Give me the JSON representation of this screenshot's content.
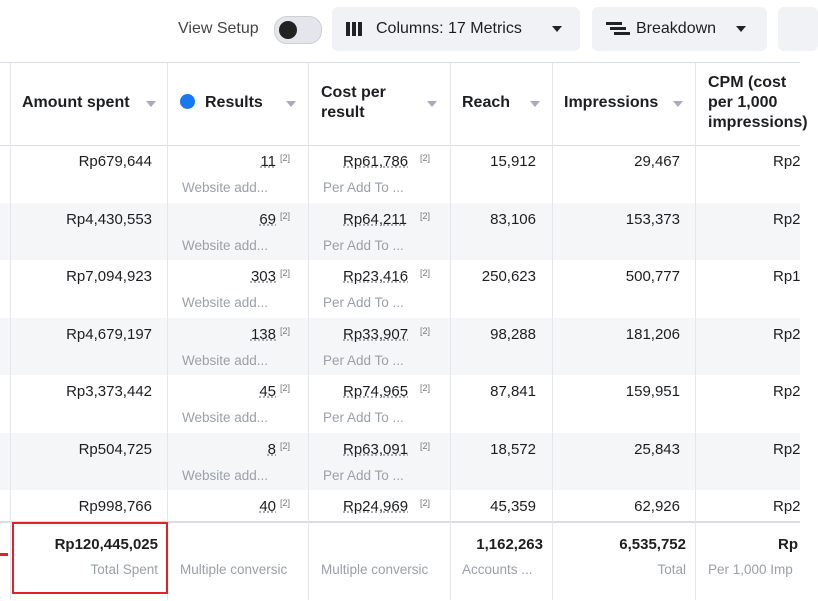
{
  "toolbar": {
    "view_setup": "View Setup",
    "columns": "Columns: 17 Metrics",
    "breakdown": "Breakdown"
  },
  "table": {
    "headers": {
      "amount": "Amount spent",
      "results": "Results",
      "cost": "Cost per result",
      "reach": "Reach",
      "impressions": "Impressions",
      "cpm": "CPM (cost per 1,000 impressions)"
    },
    "rows": [
      {
        "amount": "Rp679,644",
        "results": "11",
        "results_note": "[2]",
        "results_type": "Website add...",
        "cost": "Rp61,786",
        "cost_note": "[2]",
        "cost_type": "Per Add To ...",
        "reach": "15,912",
        "impressions": "29,467",
        "cpm": "Rp2"
      },
      {
        "amount": "Rp4,430,553",
        "results": "69",
        "results_note": "[2]",
        "results_type": "Website add...",
        "cost": "Rp64,211",
        "cost_note": "[2]",
        "cost_type": "Per Add To ...",
        "reach": "83,106",
        "impressions": "153,373",
        "cpm": "Rp2"
      },
      {
        "amount": "Rp7,094,923",
        "results": "303",
        "results_note": "[2]",
        "results_type": "Website add...",
        "cost": "Rp23,416",
        "cost_note": "[2]",
        "cost_type": "Per Add To ...",
        "reach": "250,623",
        "impressions": "500,777",
        "cpm": "Rp1"
      },
      {
        "amount": "Rp4,679,197",
        "results": "138",
        "results_note": "[2]",
        "results_type": "Website add...",
        "cost": "Rp33,907",
        "cost_note": "[2]",
        "cost_type": "Per Add To ...",
        "reach": "98,288",
        "impressions": "181,206",
        "cpm": "Rp2"
      },
      {
        "amount": "Rp3,373,442",
        "results": "45",
        "results_note": "[2]",
        "results_type": "Website add...",
        "cost": "Rp74,965",
        "cost_note": "[2]",
        "cost_type": "Per Add To ...",
        "reach": "87,841",
        "impressions": "159,951",
        "cpm": "Rp2"
      },
      {
        "amount": "Rp504,725",
        "results": "8",
        "results_note": "[2]",
        "results_type": "Website add...",
        "cost": "Rp63,091",
        "cost_note": "[2]",
        "cost_type": "Per Add To ...",
        "reach": "18,572",
        "impressions": "25,843",
        "cpm": "Rp2"
      },
      {
        "amount": "Rp998,766",
        "results": "40",
        "results_note": "[2]",
        "cost": "Rp24,969",
        "cost_note": "[2]",
        "reach": "45,359",
        "impressions": "62,926",
        "cpm": "Rp2"
      }
    ],
    "totals": {
      "amount": "Rp120,445,025",
      "amount_label": "Total Spent",
      "results_label": "Multiple conversic",
      "cost_label": "Multiple conversic",
      "reach": "1,162,263",
      "reach_label": "Accounts ...",
      "impressions": "6,535,752",
      "impressions_label": "Total",
      "cpm": "Rp",
      "cpm_label": "Per 1,000 Imp"
    }
  }
}
